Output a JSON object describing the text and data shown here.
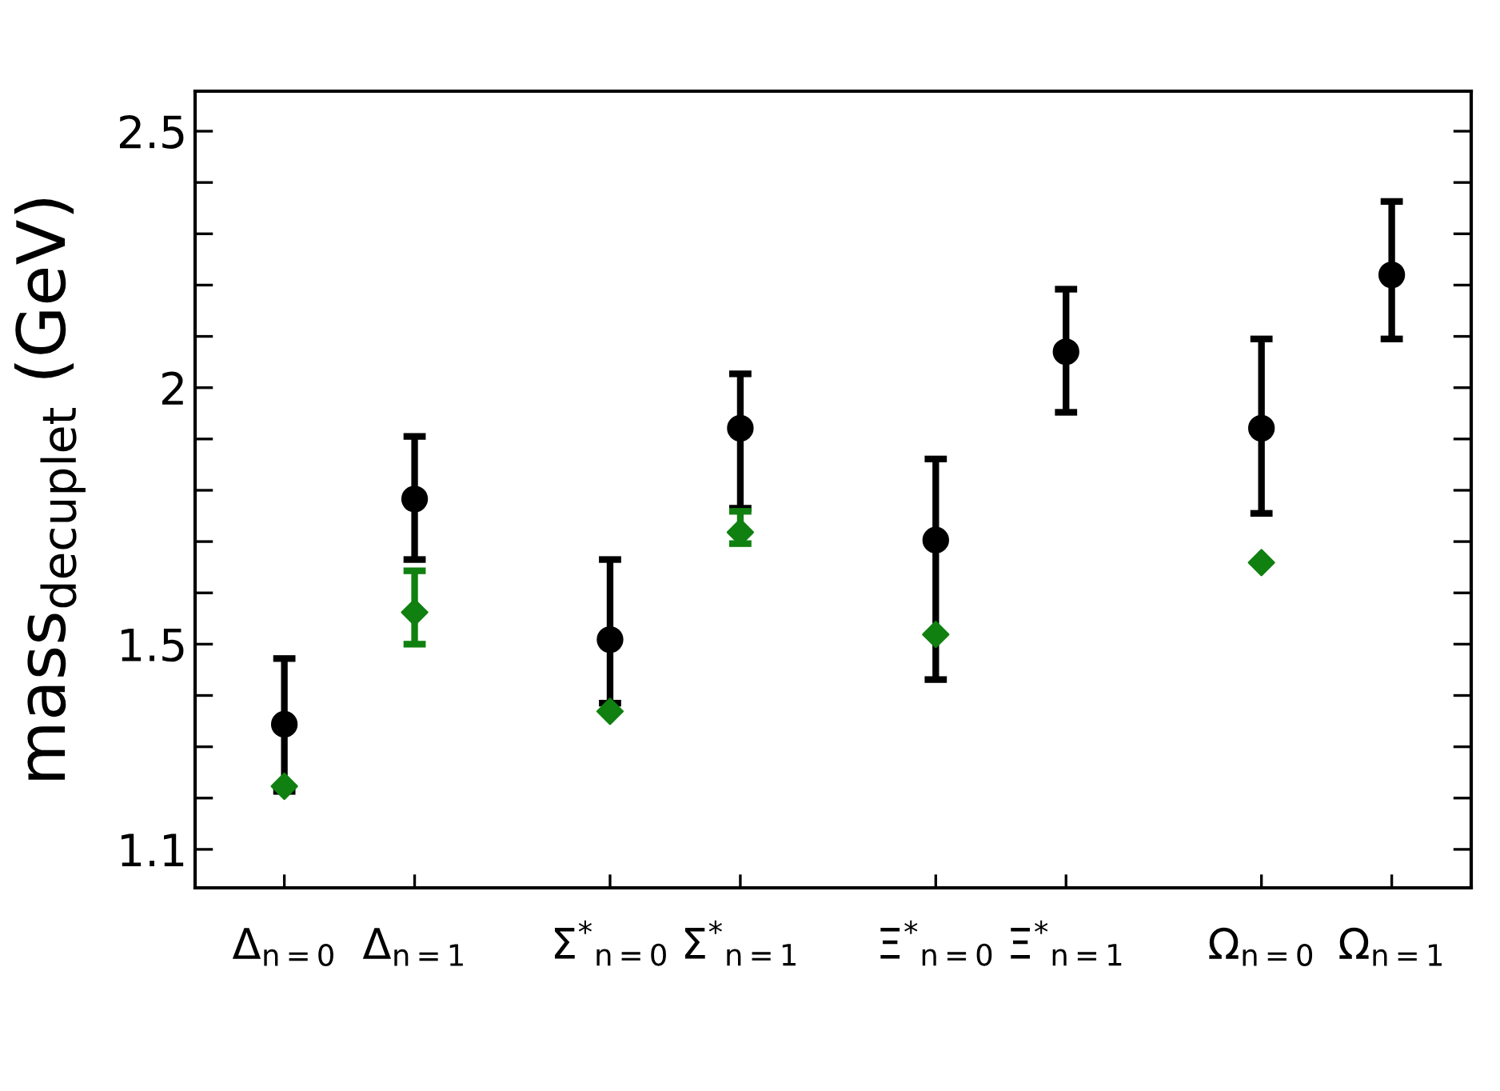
{
  "chart_data": {
    "type": "scatter",
    "ylabel": "mass$_{decuplet}$ (GeV)",
    "categories": [
      "Δ$_{n=0}$",
      null,
      "Δ$_{n=1}$",
      null,
      null,
      "Σ$^{*}$$_{n=0}$",
      null,
      "Σ$^{*}$$_{n=1}$",
      null,
      null,
      "Ξ$^{*}$$_{n=0}$",
      null,
      "Ξ$^{*}$$_{n=1}$",
      null,
      null,
      "Ω$_{n=0}$",
      null,
      "Ω$_{n=1}$"
    ],
    "ylim": [
      1.025,
      2.578
    ],
    "yticks": [
      1.1,
      {
        "value": 1.2,
        "label": null
      },
      {
        "value": 1.3,
        "label": null
      },
      {
        "value": 1.4,
        "label": null
      },
      1.5,
      {
        "value": 1.6,
        "label": null
      },
      {
        "value": 1.7,
        "label": null
      },
      {
        "value": 1.8,
        "label": null
      },
      {
        "value": 1.9,
        "label": null
      },
      2,
      {
        "value": 2.1,
        "label": null
      },
      {
        "value": 2.2,
        "label": null
      },
      {
        "value": 2.3,
        "label": null
      },
      {
        "value": 2.4,
        "label": null
      },
      2.5
    ],
    "grid": false,
    "legend": false,
    "series": [
      {
        "color": "#000000",
        "marker": "circle",
        "values": [
          1.344,
          null,
          1.783,
          null,
          null,
          1.509,
          null,
          1.921,
          null,
          null,
          1.703,
          null,
          2.07,
          null,
          null,
          1.921,
          null,
          2.22
        ],
        "errors": [
          [
            1.213,
            1.472
          ],
          null,
          [
            1.665,
            1.905
          ],
          null,
          null,
          [
            1.385,
            1.665
          ],
          null,
          [
            1.765,
            2.027
          ],
          null,
          null,
          [
            1.431,
            1.861
          ],
          null,
          [
            1.952,
            2.192
          ],
          null,
          null,
          [
            1.755,
            2.095
          ],
          null,
          [
            2.095,
            2.363
          ]
        ]
      },
      {
        "color": "#108010",
        "marker": "diamond",
        "values": [
          1.223,
          null,
          1.562,
          null,
          null,
          1.369,
          null,
          1.718,
          null,
          null,
          1.519,
          null,
          null,
          null,
          null,
          1.659,
          null,
          null
        ],
        "errors": [
          null,
          null,
          [
            1.5,
            1.643
          ],
          null,
          null,
          null,
          null,
          [
            1.696,
            1.759
          ],
          null,
          null,
          null,
          null,
          null,
          null,
          null,
          null,
          null,
          null
        ]
      }
    ]
  }
}
